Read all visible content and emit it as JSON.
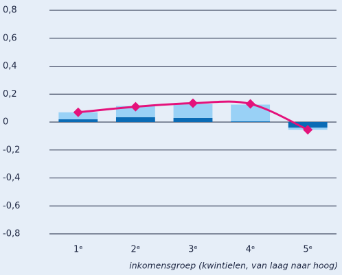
{
  "chart_data": {
    "type": "bar",
    "categories": [
      "1ᵉ",
      "2ᵉ",
      "3ᵉ",
      "4ᵉ",
      "5ᵉ"
    ],
    "x_label": "inkomensgroep (kwintielen, van laag naar hoog)",
    "series": [
      {
        "color": "#0a6bb5",
        "values": [
          0.02,
          0.035,
          0.03,
          0.005,
          -0.04
        ]
      },
      {
        "color": "#99d1f6",
        "values": [
          0.05,
          0.08,
          0.1,
          0.12,
          -0.015
        ]
      },
      {
        "type": "line",
        "color": "#e4127b",
        "values": [
          0.07,
          0.11,
          0.135,
          0.13,
          -0.055
        ]
      }
    ],
    "ylim": [
      -0.8,
      0.8
    ],
    "yticks": [
      {
        "value": 0.8,
        "label": "0,8"
      },
      {
        "value": 0.6,
        "label": "0,6"
      },
      {
        "value": 0.4,
        "label": "0,4"
      },
      {
        "value": 0.2,
        "label": "0,2"
      },
      0,
      {
        "value": -0.2,
        "label": "-0,2"
      },
      {
        "value": -0.4,
        "label": "-0,4"
      },
      {
        "value": -0.6,
        "label": "-0,6"
      },
      {
        "value": -0.8,
        "label": "-0,8"
      }
    ],
    "grid": true
  }
}
